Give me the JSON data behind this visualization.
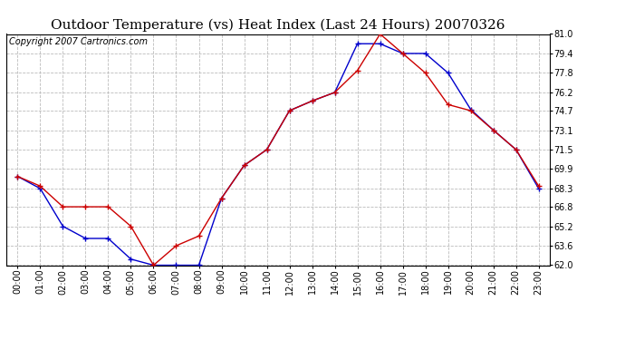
{
  "title": "Outdoor Temperature (vs) Heat Index (Last 24 Hours) 20070326",
  "copyright": "Copyright 2007 Cartronics.com",
  "x_labels": [
    "00:00",
    "01:00",
    "02:00",
    "03:00",
    "04:00",
    "05:00",
    "06:00",
    "07:00",
    "08:00",
    "09:00",
    "10:00",
    "11:00",
    "12:00",
    "13:00",
    "14:00",
    "15:00",
    "16:00",
    "17:00",
    "18:00",
    "19:00",
    "20:00",
    "21:00",
    "22:00",
    "23:00"
  ],
  "temp_data": [
    69.3,
    68.5,
    66.8,
    66.8,
    66.8,
    65.2,
    62.0,
    63.6,
    64.4,
    67.5,
    70.2,
    71.5,
    74.7,
    75.5,
    76.2,
    78.0,
    81.0,
    79.4,
    77.8,
    75.2,
    74.7,
    73.1,
    71.5,
    68.5
  ],
  "heat_index_data": [
    69.3,
    68.3,
    65.2,
    64.2,
    64.2,
    62.5,
    62.0,
    62.0,
    62.0,
    67.5,
    70.2,
    71.5,
    74.7,
    75.5,
    76.2,
    80.2,
    80.2,
    79.4,
    79.4,
    77.8,
    74.8,
    73.1,
    71.5,
    68.3
  ],
  "temp_color": "#cc0000",
  "heat_color": "#0000cc",
  "ylim_min": 62.0,
  "ylim_max": 81.0,
  "yticks": [
    62.0,
    63.6,
    65.2,
    66.8,
    68.3,
    69.9,
    71.5,
    73.1,
    74.7,
    76.2,
    77.8,
    79.4,
    81.0
  ],
  "ytick_labels": [
    "62.0",
    "63.6",
    "65.2",
    "66.8",
    "68.3",
    "69.9",
    "71.5",
    "73.1",
    "74.7",
    "76.2",
    "77.8",
    "79.4",
    "81.0"
  ],
  "bg_color": "#ffffff",
  "plot_bg_color": "#ffffff",
  "grid_color": "#bbbbbb",
  "title_fontsize": 11,
  "copyright_fontsize": 7,
  "tick_fontsize": 7
}
